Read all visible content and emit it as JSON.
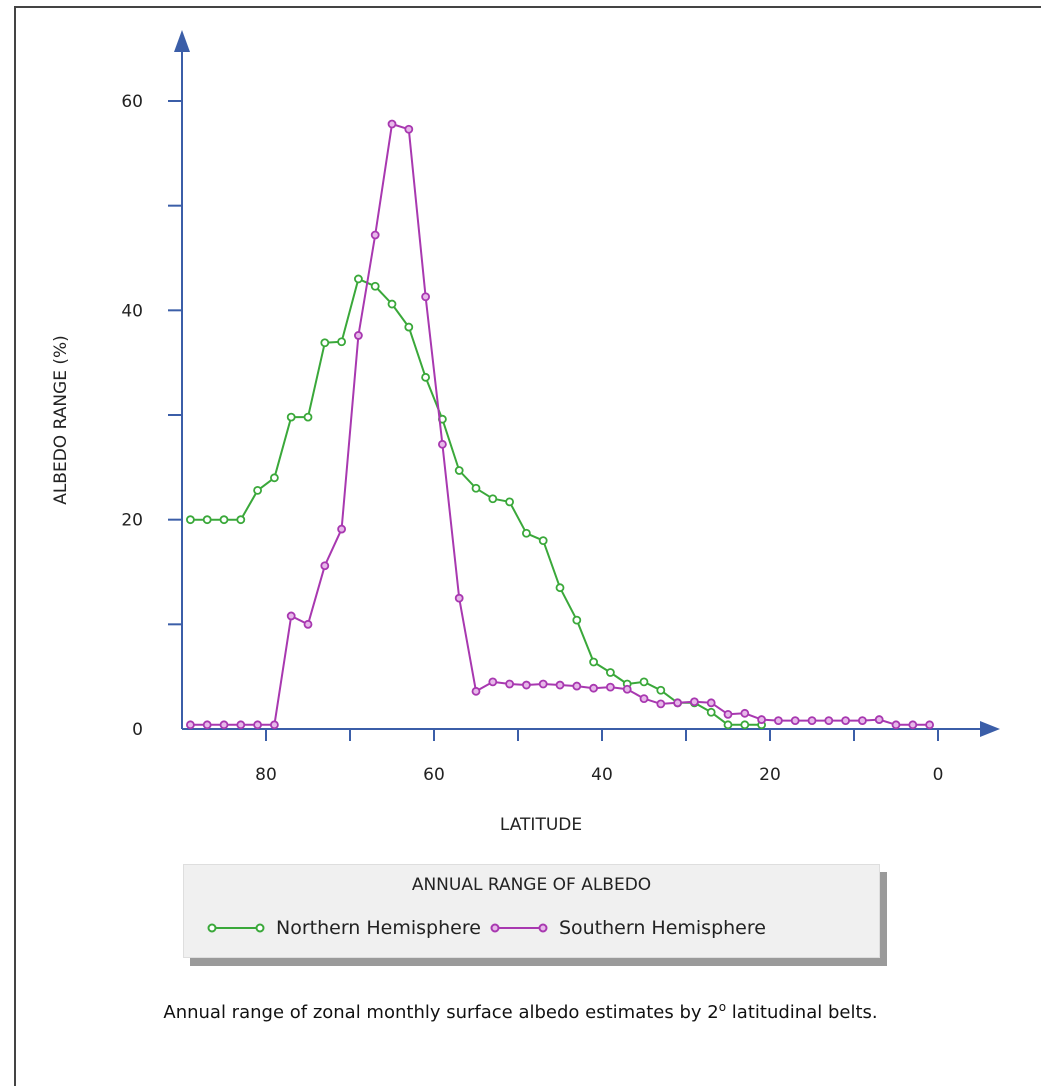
{
  "chart_data": {
    "type": "line",
    "xlabel": "LATITUDE",
    "ylabel": "ALBEDO RANGE (%)",
    "xlim": [
      90,
      0
    ],
    "ylim": [
      0,
      60
    ],
    "x_ticks": [
      80,
      60,
      40,
      20,
      0
    ],
    "y_ticks": [
      0,
      20,
      40,
      60
    ],
    "legend_title": "ANNUAL RANGE OF ALBEDO",
    "legend_position": "bottom",
    "series": [
      {
        "name": "Northern Hemisphere",
        "color": "#3aa83a",
        "points": [
          [
            89,
            20
          ],
          [
            87,
            20
          ],
          [
            85,
            20
          ],
          [
            83,
            20
          ],
          [
            81,
            22.8
          ],
          [
            79,
            24
          ],
          [
            77,
            29.8
          ],
          [
            75,
            29.8
          ],
          [
            73,
            36.9
          ],
          [
            71,
            37
          ],
          [
            69,
            43
          ],
          [
            67,
            42.3
          ],
          [
            65,
            40.6
          ],
          [
            63,
            38.4
          ],
          [
            61,
            33.6
          ],
          [
            59,
            29.6
          ],
          [
            57,
            24.7
          ],
          [
            55,
            23
          ],
          [
            53,
            22
          ],
          [
            51,
            21.7
          ],
          [
            49,
            18.7
          ],
          [
            47,
            18
          ],
          [
            45,
            13.5
          ],
          [
            43,
            10.4
          ],
          [
            41,
            6.4
          ],
          [
            39,
            5.4
          ],
          [
            37,
            4.3
          ],
          [
            35,
            4.5
          ],
          [
            33,
            3.7
          ],
          [
            31,
            2.5
          ],
          [
            29,
            2.5
          ],
          [
            27,
            1.6
          ],
          [
            25,
            0.4
          ],
          [
            23,
            0.4
          ],
          [
            21,
            0.4
          ]
        ]
      },
      {
        "name": "Southern Hemisphere",
        "color": "#a838b0",
        "points": [
          [
            89,
            0.4
          ],
          [
            87,
            0.4
          ],
          [
            85,
            0.4
          ],
          [
            83,
            0.4
          ],
          [
            81,
            0.4
          ],
          [
            79,
            0.4
          ],
          [
            77,
            10.8
          ],
          [
            75,
            10
          ],
          [
            73,
            15.6
          ],
          [
            71,
            19.1
          ],
          [
            69,
            37.6
          ],
          [
            67,
            47.2
          ],
          [
            65,
            57.8
          ],
          [
            63,
            57.3
          ],
          [
            61,
            41.3
          ],
          [
            59,
            27.2
          ],
          [
            57,
            12.5
          ],
          [
            55,
            3.6
          ],
          [
            53,
            4.5
          ],
          [
            51,
            4.3
          ],
          [
            49,
            4.2
          ],
          [
            47,
            4.3
          ],
          [
            45,
            4.2
          ],
          [
            43,
            4.1
          ],
          [
            41,
            3.9
          ],
          [
            39,
            4.0
          ],
          [
            37,
            3.8
          ],
          [
            35,
            2.9
          ],
          [
            33,
            2.4
          ],
          [
            31,
            2.5
          ],
          [
            29,
            2.6
          ],
          [
            27,
            2.5
          ],
          [
            25,
            1.4
          ],
          [
            23,
            1.5
          ],
          [
            21,
            0.9
          ],
          [
            19,
            0.8
          ],
          [
            17,
            0.8
          ],
          [
            15,
            0.8
          ],
          [
            13,
            0.8
          ],
          [
            11,
            0.8
          ],
          [
            9,
            0.8
          ],
          [
            7,
            0.9
          ],
          [
            5,
            0.4
          ],
          [
            3,
            0.4
          ],
          [
            1,
            0.4
          ]
        ]
      }
    ]
  },
  "caption": {
    "before": "Annual range of zonal monthly surface albedo estimates by 2",
    "sup": "o",
    "after": " latitudinal belts."
  }
}
